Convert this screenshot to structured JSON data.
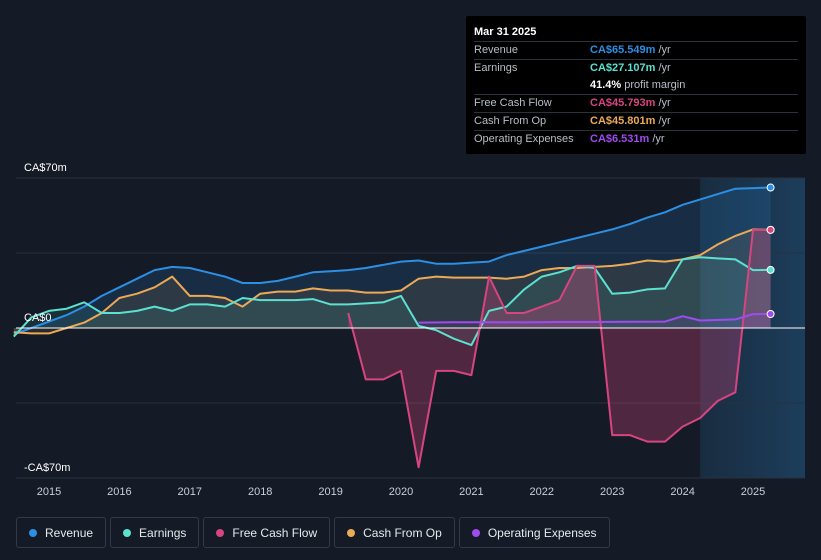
{
  "colors": {
    "revenue": "#2d8fe3",
    "earnings": "#5ce0cf",
    "fcf": "#d6457f",
    "cfo": "#eca956",
    "opex": "#9f4bf0"
  },
  "tooltip": {
    "date": "Mar 31 2025",
    "rows": [
      {
        "label": "Revenue",
        "value": "CA$65.549m",
        "unit": "/yr",
        "color": "#2d8fe3"
      },
      {
        "label": "Earnings",
        "value": "CA$27.107m",
        "unit": "/yr",
        "color": "#5ce0cf"
      },
      {
        "label": "",
        "value": "41.4%",
        "unit": "profit margin",
        "color": "#ffffff"
      },
      {
        "label": "Free Cash Flow",
        "value": "CA$45.793m",
        "unit": "/yr",
        "color": "#d6457f"
      },
      {
        "label": "Cash From Op",
        "value": "CA$45.801m",
        "unit": "/yr",
        "color": "#eca956"
      },
      {
        "label": "Operating Expenses",
        "value": "CA$6.531m",
        "unit": "/yr",
        "color": "#9f4bf0"
      }
    ]
  },
  "legend": [
    {
      "label": "Revenue",
      "color": "#2d8fe3"
    },
    {
      "label": "Earnings",
      "color": "#5ce0cf"
    },
    {
      "label": "Free Cash Flow",
      "color": "#d6457f"
    },
    {
      "label": "Cash From Op",
      "color": "#eca956"
    },
    {
      "label": "Operating Expenses",
      "color": "#9f4bf0"
    }
  ],
  "chart_data": {
    "type": "area",
    "title": "",
    "units": "CA$m",
    "ylim": [
      -70,
      70
    ],
    "xlim": [
      2014.5,
      2025.25
    ],
    "y_axis_labels": [
      {
        "value": 70,
        "text": "CA$70m"
      },
      {
        "value": 0,
        "text": "CA$0"
      },
      {
        "value": -70,
        "text": "-CA$70m"
      }
    ],
    "x_ticks": [
      {
        "value": 2015,
        "text": "2015"
      },
      {
        "value": 2016,
        "text": "2016"
      },
      {
        "value": 2017,
        "text": "2017"
      },
      {
        "value": 2018,
        "text": "2018"
      },
      {
        "value": 2019,
        "text": "2019"
      },
      {
        "value": 2020,
        "text": "2020"
      },
      {
        "value": 2021,
        "text": "2021"
      },
      {
        "value": 2022,
        "text": "2022"
      },
      {
        "value": 2023,
        "text": "2023"
      },
      {
        "value": 2024,
        "text": "2024"
      },
      {
        "value": 2025,
        "text": "2025"
      }
    ],
    "forecast_from": 2024.25,
    "series": [
      {
        "name": "Revenue",
        "key": "revenue",
        "points": [
          [
            2014.5,
            -3
          ],
          [
            2014.75,
            0
          ],
          [
            2015.0,
            3
          ],
          [
            2015.25,
            6
          ],
          [
            2015.5,
            10
          ],
          [
            2015.75,
            15
          ],
          [
            2016.0,
            19
          ],
          [
            2016.25,
            23
          ],
          [
            2016.5,
            27
          ],
          [
            2016.75,
            28.5
          ],
          [
            2017.0,
            28
          ],
          [
            2017.25,
            26
          ],
          [
            2017.5,
            24
          ],
          [
            2017.75,
            21
          ],
          [
            2018.0,
            21
          ],
          [
            2018.25,
            22
          ],
          [
            2018.5,
            24
          ],
          [
            2018.75,
            26
          ],
          [
            2019.0,
            26.5
          ],
          [
            2019.25,
            27
          ],
          [
            2019.5,
            28
          ],
          [
            2019.75,
            29.5
          ],
          [
            2020.0,
            31
          ],
          [
            2020.25,
            31.5
          ],
          [
            2020.5,
            30
          ],
          [
            2020.75,
            30
          ],
          [
            2021.0,
            30.5
          ],
          [
            2021.25,
            31
          ],
          [
            2021.5,
            34
          ],
          [
            2021.75,
            36
          ],
          [
            2022.0,
            38
          ],
          [
            2022.25,
            40
          ],
          [
            2022.5,
            42
          ],
          [
            2022.75,
            44
          ],
          [
            2023.0,
            46
          ],
          [
            2023.25,
            48.5
          ],
          [
            2023.5,
            51.5
          ],
          [
            2023.75,
            54
          ],
          [
            2024.0,
            57.5
          ],
          [
            2024.25,
            60
          ],
          [
            2024.5,
            62.5
          ],
          [
            2024.75,
            65
          ],
          [
            2025.0,
            65.3
          ],
          [
            2025.25,
            65.549
          ]
        ]
      },
      {
        "name": "Earnings",
        "key": "earnings",
        "points": [
          [
            2014.5,
            -4
          ],
          [
            2014.75,
            5
          ],
          [
            2015.0,
            8
          ],
          [
            2015.25,
            9
          ],
          [
            2015.5,
            12
          ],
          [
            2015.75,
            7
          ],
          [
            2016.0,
            7
          ],
          [
            2016.25,
            8
          ],
          [
            2016.5,
            10
          ],
          [
            2016.75,
            8
          ],
          [
            2017.0,
            11
          ],
          [
            2017.25,
            11
          ],
          [
            2017.5,
            10
          ],
          [
            2017.75,
            14
          ],
          [
            2018.0,
            13
          ],
          [
            2018.25,
            13
          ],
          [
            2018.5,
            13
          ],
          [
            2018.75,
            13.5
          ],
          [
            2019.0,
            11
          ],
          [
            2019.25,
            11
          ],
          [
            2019.5,
            11.5
          ],
          [
            2019.75,
            12
          ],
          [
            2020.0,
            15
          ],
          [
            2020.25,
            1
          ],
          [
            2020.5,
            -1
          ],
          [
            2020.75,
            -5
          ],
          [
            2021.0,
            -8
          ],
          [
            2021.25,
            8
          ],
          [
            2021.5,
            10
          ],
          [
            2021.75,
            18
          ],
          [
            2022.0,
            24
          ],
          [
            2022.25,
            26
          ],
          [
            2022.5,
            29
          ],
          [
            2022.75,
            28
          ],
          [
            2023.0,
            16
          ],
          [
            2023.25,
            16.5
          ],
          [
            2023.5,
            18
          ],
          [
            2023.75,
            18.5
          ],
          [
            2024.0,
            32
          ],
          [
            2024.25,
            33
          ],
          [
            2024.5,
            32.5
          ],
          [
            2024.75,
            32
          ],
          [
            2025.0,
            27
          ],
          [
            2025.25,
            27.107
          ]
        ]
      },
      {
        "name": "Free Cash Flow",
        "key": "fcf",
        "start": 2019.25,
        "points": [
          [
            2019.25,
            7
          ],
          [
            2019.5,
            -24
          ],
          [
            2019.75,
            -24
          ],
          [
            2020.0,
            -20
          ],
          [
            2020.25,
            -65
          ],
          [
            2020.5,
            -20
          ],
          [
            2020.75,
            -20
          ],
          [
            2021.0,
            -22
          ],
          [
            2021.25,
            24
          ],
          [
            2021.5,
            7
          ],
          [
            2021.75,
            7
          ],
          [
            2022.0,
            10
          ],
          [
            2022.25,
            13
          ],
          [
            2022.5,
            29
          ],
          [
            2022.75,
            29
          ],
          [
            2023.0,
            -50
          ],
          [
            2023.25,
            -50
          ],
          [
            2023.5,
            -53
          ],
          [
            2023.75,
            -53
          ],
          [
            2024.0,
            -46
          ],
          [
            2024.25,
            -42
          ],
          [
            2024.5,
            -34
          ],
          [
            2024.75,
            -30
          ],
          [
            2025.0,
            45.8
          ],
          [
            2025.25,
            45.793
          ]
        ]
      },
      {
        "name": "Cash From Op",
        "key": "cfo",
        "points": [
          [
            2014.5,
            -2
          ],
          [
            2014.75,
            -2.5
          ],
          [
            2015.0,
            -2.5
          ],
          [
            2015.25,
            0
          ],
          [
            2015.5,
            2.5
          ],
          [
            2015.75,
            7
          ],
          [
            2016.0,
            14
          ],
          [
            2016.25,
            16
          ],
          [
            2016.5,
            19
          ],
          [
            2016.75,
            24
          ],
          [
            2017.0,
            15
          ],
          [
            2017.25,
            15
          ],
          [
            2017.5,
            14
          ],
          [
            2017.75,
            10
          ],
          [
            2018.0,
            16
          ],
          [
            2018.25,
            17
          ],
          [
            2018.5,
            17
          ],
          [
            2018.75,
            18.5
          ],
          [
            2019.0,
            17.5
          ],
          [
            2019.25,
            17.5
          ],
          [
            2019.5,
            16.5
          ],
          [
            2019.75,
            16.5
          ],
          [
            2020.0,
            17.5
          ],
          [
            2020.25,
            23
          ],
          [
            2020.5,
            24
          ],
          [
            2020.75,
            23.5
          ],
          [
            2021.0,
            23.5
          ],
          [
            2021.25,
            23.5
          ],
          [
            2021.5,
            23
          ],
          [
            2021.75,
            24
          ],
          [
            2022.0,
            27
          ],
          [
            2022.25,
            28
          ],
          [
            2022.5,
            28
          ],
          [
            2022.75,
            28.5
          ],
          [
            2023.0,
            29
          ],
          [
            2023.25,
            30
          ],
          [
            2023.5,
            31.5
          ],
          [
            2023.75,
            31
          ],
          [
            2024.0,
            32
          ],
          [
            2024.25,
            34
          ],
          [
            2024.5,
            39
          ],
          [
            2024.75,
            43
          ],
          [
            2025.0,
            46
          ],
          [
            2025.25,
            45.801
          ]
        ]
      },
      {
        "name": "Operating Expenses",
        "key": "opex",
        "start": 2020.25,
        "points": [
          [
            2020.25,
            2.5
          ],
          [
            2020.75,
            2.7
          ],
          [
            2021.25,
            2.7
          ],
          [
            2021.75,
            2.6
          ],
          [
            2022.25,
            2.8
          ],
          [
            2022.75,
            2.8
          ],
          [
            2023.25,
            2.9
          ],
          [
            2023.75,
            3.0
          ],
          [
            2024.0,
            5.5
          ],
          [
            2024.25,
            3.5
          ],
          [
            2024.75,
            4
          ],
          [
            2025.0,
            6.5
          ],
          [
            2025.25,
            6.531
          ]
        ]
      }
    ]
  }
}
